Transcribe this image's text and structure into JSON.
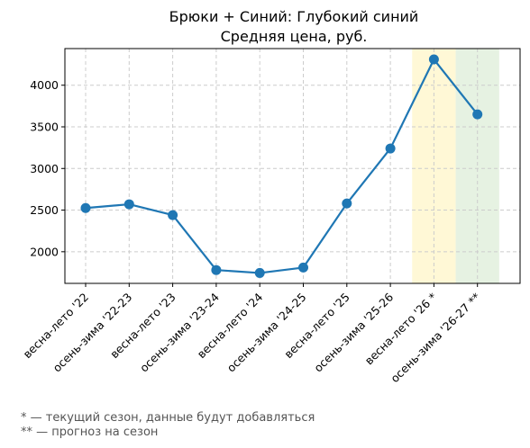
{
  "chart_data": {
    "type": "line",
    "title": "Брюки + Синий: Глубокий синий",
    "subtitle": "Средняя цена, руб.",
    "xlabel": "",
    "ylabel": "",
    "categories": [
      "весна-лето '22",
      "осень-зима '22-23",
      "весна-лето '23",
      "осень-зима '23-24",
      "весна-лето '24",
      "осень-зима '24-25",
      "весна-лето '25",
      "осень-зима '25-26",
      "весна-лето '26 *",
      "осень-зима '26-27 **"
    ],
    "series": [
      {
        "values": [
          2525,
          2570,
          2440,
          1780,
          1745,
          1810,
          2580,
          3240,
          4310,
          3650
        ]
      }
    ],
    "ylim": [
      1620,
      4440
    ],
    "yticks": [
      2000,
      2500,
      3000,
      3500,
      4000
    ],
    "grid": true,
    "line_color": "#1f77b4",
    "highlights": [
      {
        "category_index": 8,
        "color": "#fff8d6",
        "meaning": "current"
      },
      {
        "category_index": 9,
        "color": "#e6f2e2",
        "meaning": "forecast"
      }
    ]
  },
  "footnotes": {
    "current": "* — текущий сезон, данные будут добавляться",
    "forecast": "** — прогноз на сезон"
  }
}
